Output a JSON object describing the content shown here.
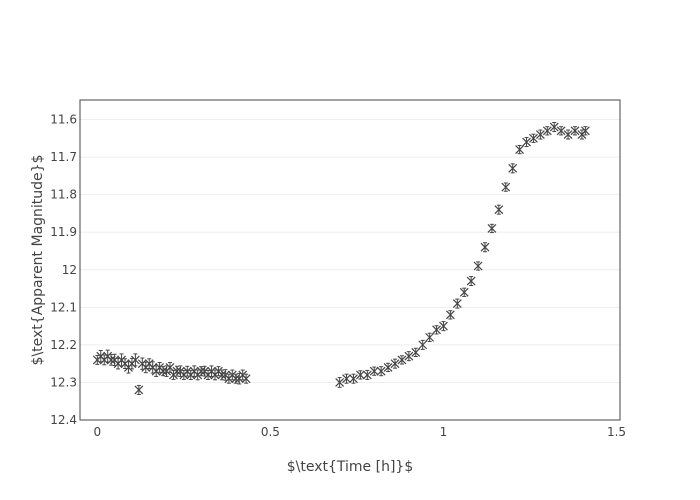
{
  "chart_data": {
    "type": "scatter",
    "title": "",
    "xlabel": "$\\text{Time [h]}$",
    "ylabel": "$\\text{Apparent Magnitude}$",
    "xlim": [
      -0.05,
      1.51
    ],
    "ylim": [
      12.4,
      11.548
    ],
    "y_reversed": true,
    "grid": "horizontal",
    "legend": "none",
    "x_ticks": [
      "0",
      "0.5",
      "1",
      "1.5"
    ],
    "x_tick_values": [
      0,
      0.5,
      1,
      1.5
    ],
    "y_ticks": [
      "11.6",
      "11.7",
      "11.8",
      "11.9",
      "12",
      "12.1",
      "12.2",
      "12.3",
      "12.4"
    ],
    "y_tick_values": [
      11.6,
      11.7,
      11.8,
      11.9,
      12.0,
      12.1,
      12.2,
      12.3,
      12.4
    ],
    "marker": "x",
    "error_bars": "y",
    "marker_color": "#444444",
    "series": [
      {
        "x": [
          0.0,
          0.01,
          0.02,
          0.03,
          0.04,
          0.05,
          0.06,
          0.07,
          0.08,
          0.09,
          0.1,
          0.11,
          0.12,
          0.13,
          0.14,
          0.15,
          0.16,
          0.17,
          0.18,
          0.19,
          0.2,
          0.21,
          0.22,
          0.23,
          0.24,
          0.25,
          0.26,
          0.27,
          0.28,
          0.29,
          0.3,
          0.31,
          0.32,
          0.33,
          0.34,
          0.35,
          0.36,
          0.37,
          0.38,
          0.39,
          0.4,
          0.41,
          0.42,
          0.43,
          0.7,
          0.72,
          0.74,
          0.76,
          0.78,
          0.8,
          0.82,
          0.84,
          0.86,
          0.88,
          0.9,
          0.92,
          0.94,
          0.96,
          0.98,
          1.0,
          1.02,
          1.04,
          1.06,
          1.08,
          1.1,
          1.12,
          1.14,
          1.16,
          1.18,
          1.2,
          1.22,
          1.24,
          1.26,
          1.28,
          1.3,
          1.32,
          1.34,
          1.36,
          1.38,
          1.4,
          1.41
        ],
        "y": [
          12.24,
          12.23,
          12.24,
          12.23,
          12.24,
          12.24,
          12.25,
          12.24,
          12.25,
          12.26,
          12.25,
          12.24,
          12.32,
          12.25,
          12.26,
          12.25,
          12.26,
          12.27,
          12.26,
          12.27,
          12.27,
          12.26,
          12.28,
          12.27,
          12.27,
          12.28,
          12.27,
          12.28,
          12.27,
          12.28,
          12.27,
          12.27,
          12.28,
          12.27,
          12.28,
          12.27,
          12.28,
          12.28,
          12.29,
          12.28,
          12.29,
          12.29,
          12.28,
          12.29,
          12.3,
          12.29,
          12.29,
          12.28,
          12.28,
          12.27,
          12.27,
          12.26,
          12.25,
          12.24,
          12.23,
          12.22,
          12.2,
          12.18,
          12.16,
          12.15,
          12.12,
          12.09,
          12.06,
          12.03,
          11.99,
          11.94,
          11.89,
          11.84,
          11.78,
          11.73,
          11.68,
          11.66,
          11.65,
          11.64,
          11.63,
          11.62,
          11.63,
          11.64,
          11.63,
          11.64,
          11.63
        ],
        "error": [
          0.012,
          0.015,
          0.013,
          0.016,
          0.014,
          0.015,
          0.014,
          0.016,
          0.013,
          0.015,
          0.014,
          0.016,
          0.012,
          0.015,
          0.014,
          0.013,
          0.015,
          0.014,
          0.013,
          0.012,
          0.014,
          0.013,
          0.012,
          0.013,
          0.014,
          0.012,
          0.013,
          0.012,
          0.014,
          0.013,
          0.012,
          0.013,
          0.012,
          0.014,
          0.013,
          0.012,
          0.013,
          0.014,
          0.012,
          0.013,
          0.012,
          0.014,
          0.013,
          0.012,
          0.013,
          0.012,
          0.012,
          0.011,
          0.012,
          0.011,
          0.012,
          0.011,
          0.012,
          0.011,
          0.012,
          0.011,
          0.012,
          0.011,
          0.011,
          0.012,
          0.011,
          0.012,
          0.011,
          0.012,
          0.011,
          0.012,
          0.011,
          0.012,
          0.011,
          0.012,
          0.011,
          0.012,
          0.011,
          0.012,
          0.011,
          0.012,
          0.011,
          0.012,
          0.011,
          0.012,
          0.011
        ]
      }
    ]
  }
}
